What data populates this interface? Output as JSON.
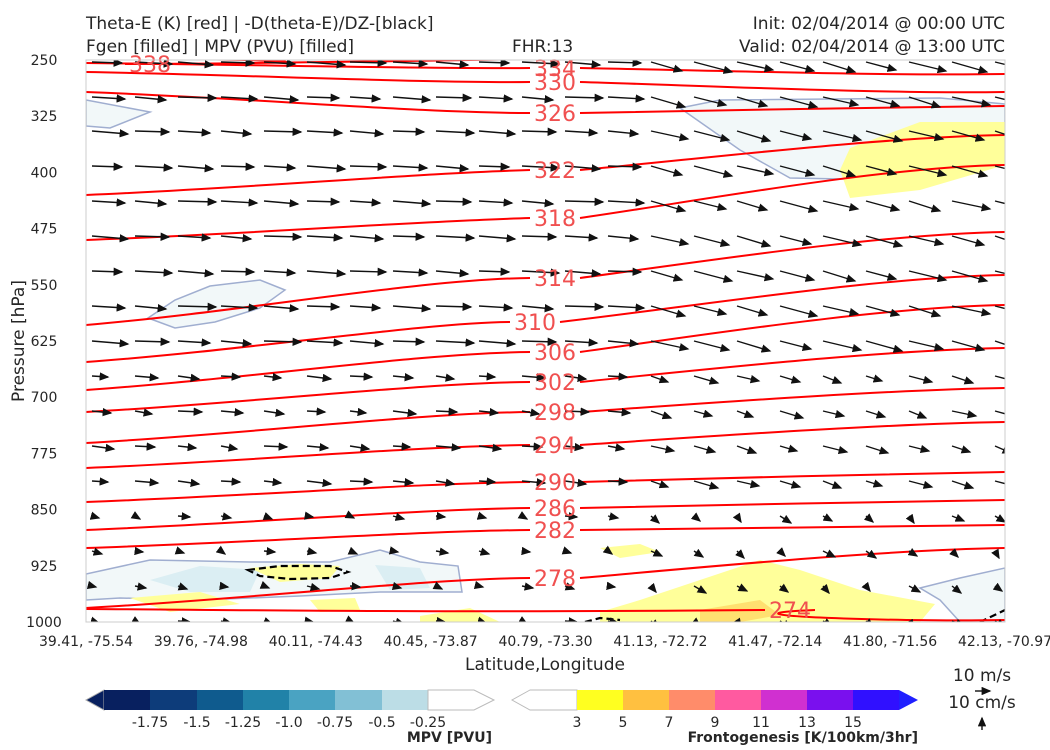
{
  "header": {
    "title_line1": "Theta-E (K) [red] | -D(theta-E)/DZ-[black]",
    "title_line2": "Fgen [filled] | MPV (PVU) [filled]",
    "fhr": "FHR:13",
    "init": "Init: 02/04/2014 @ 00:00 UTC",
    "valid": "Valid: 02/04/2014 @ 13:00 UTC"
  },
  "chart_data": {
    "type": "cross-section",
    "ylabel": "Pressure [hPa]",
    "xlabel": "Latitude,Longitude",
    "y_ticks": [
      250,
      325,
      400,
      475,
      550,
      625,
      700,
      775,
      850,
      925,
      1000
    ],
    "ylim": [
      1000,
      200
    ],
    "y_scale": "pressure (inverted)",
    "x_ticks": [
      "39.41, -75.54",
      "39.76, -74.98",
      "40.11, -74.43",
      "40.45, -73.87",
      "40.79, -73.30",
      "41.13, -72.72",
      "41.47, -72.14",
      "41.80, -71.56",
      "42.13, -70.97"
    ],
    "theta_e_color": "#ff0000",
    "theta_e_contours": [
      {
        "label": "338"
      },
      {
        "label": "334"
      },
      {
        "label": "330"
      },
      {
        "label": "326"
      },
      {
        "label": "322"
      },
      {
        "label": "318"
      },
      {
        "label": "314"
      },
      {
        "label": "310"
      },
      {
        "label": "306"
      },
      {
        "label": "302"
      },
      {
        "label": "298"
      },
      {
        "label": "294"
      },
      {
        "label": "290"
      },
      {
        "label": "286"
      },
      {
        "label": "282"
      },
      {
        "label": "278"
      },
      {
        "label": "274"
      }
    ],
    "vector_key": {
      "horizontal": "10 m/s",
      "vertical": "10 cm/s"
    }
  },
  "colorbars": {
    "mpv": {
      "label": "MPV [PVU]",
      "ticks": [
        "-1.75",
        "-1.5",
        "-1.25",
        "-1.0",
        "-0.75",
        "-0.5",
        "-0.25"
      ],
      "colors": [
        "#08205f",
        "#0d3c7a",
        "#0f5b8e",
        "#2182a8",
        "#4aa3c2",
        "#82c0d5",
        "#bcdde6",
        "#ffffff"
      ]
    },
    "fgen": {
      "label": "Frontogenesis [K/100km/3hr]",
      "ticks": [
        "3",
        "5",
        "7",
        "9",
        "11",
        "13",
        "15"
      ],
      "colors": [
        "#ffffff",
        "#ffff20",
        "#ffc040",
        "#ff8c6a",
        "#ff5aa0",
        "#d030d0",
        "#7a10ee",
        "#3010ff",
        "#2020ff"
      ]
    }
  }
}
